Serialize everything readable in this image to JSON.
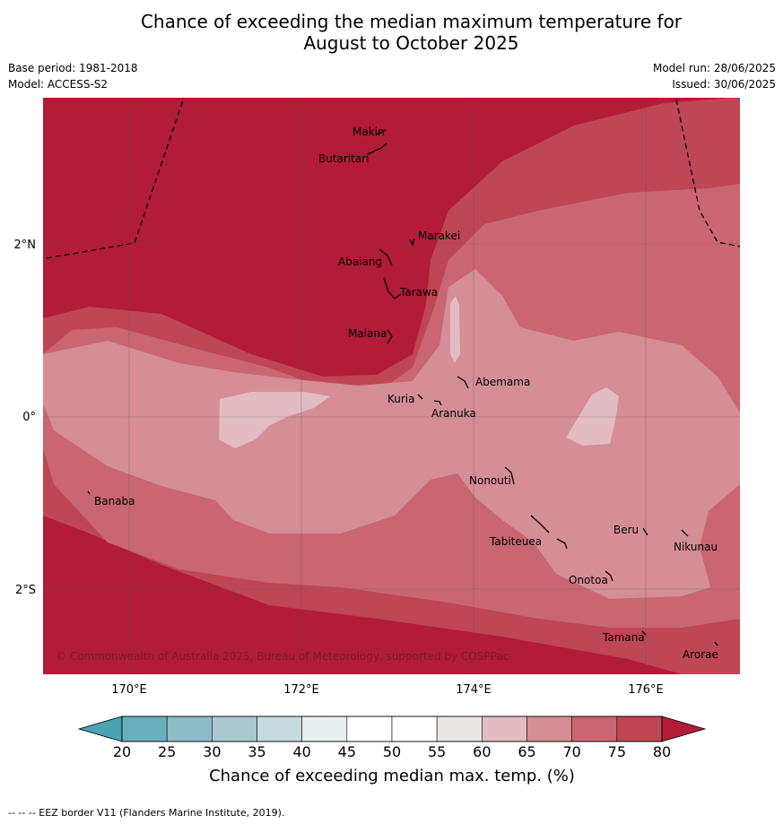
{
  "title_line1": "Chance of exceeding the median maximum temperature for",
  "title_line2": "August to October 2025",
  "meta": {
    "base_period": "Base period: 1981-2018",
    "model": "Model: ACCESS-S2",
    "model_run": "Model run: 28/06/2025",
    "issued": "Issued: 30/06/2025"
  },
  "axes": {
    "lon_ticks": [
      "170°E",
      "172°E",
      "174°E",
      "176°E"
    ],
    "lat_ticks": [
      "2°N",
      "0°",
      "2°S"
    ]
  },
  "islands": [
    "Makin",
    "Butaritari",
    "Marakei",
    "Abaiang",
    "Tarawa",
    "Maiana",
    "Abemama",
    "Kuria",
    "Aranuka",
    "Banaba",
    "Nonouti",
    "Beru",
    "Tabiteuea",
    "Nikunau",
    "Onotoa",
    "Tamana",
    "Arorae"
  ],
  "copyright": "© Commonwealth of Australia 2025, Bureau of Meteorology, supported by COSPPac",
  "colorbar": {
    "labels": [
      "20",
      "25",
      "30",
      "35",
      "40",
      "45",
      "50",
      "55",
      "60",
      "65",
      "70",
      "75",
      "80"
    ],
    "colors": [
      "#6aafbd",
      "#8dbcc7",
      "#a9c9cf",
      "#c8dadd",
      "#e9eff1",
      "#ffffff",
      "#ffffff",
      "#ebe6e6",
      "#e2bcc2",
      "#d58d96",
      "#c96672",
      "#bf4654"
    ],
    "under_color": "#4aa3b1",
    "over_color": "#b21c38",
    "label": "Chance of exceeding median max. temp. (%)"
  },
  "footer": "--  --  -- EEZ border V11 (Flanders Marine Institute, 2019)."
}
